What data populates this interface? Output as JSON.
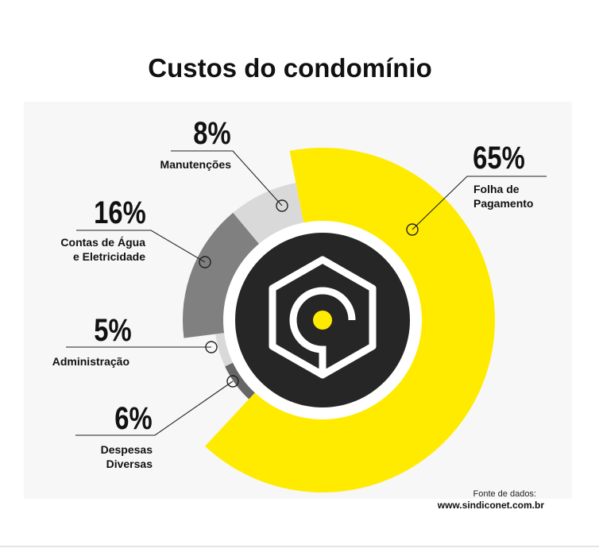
{
  "colors": {
    "accent": "#FFEB00",
    "dark": "#262626",
    "mid_gray": "#808080",
    "light_gray": "#D9D9D9",
    "dark_gray": "#666666",
    "text": "#111111"
  },
  "source": {
    "prefix": "Fonte de dados:",
    "url": "www.sindiconet.com.br"
  },
  "center_icon": "hexagon-logo-icon",
  "chart_data": {
    "type": "pie",
    "title": "Custos do condomínio",
    "unit": "%",
    "slices": [
      {
        "key": "folha",
        "value": 65,
        "display": "65%",
        "label": [
          "Folha de",
          "Pagamento"
        ],
        "color": "#FFEB00"
      },
      {
        "key": "diversas",
        "value": 6,
        "display": "6%",
        "label": [
          "Despesas",
          "Diversas"
        ],
        "color": "#666666"
      },
      {
        "key": "admin",
        "value": 5,
        "display": "5%",
        "label": [
          "Administração"
        ],
        "color": "#D9D9D9"
      },
      {
        "key": "contas",
        "value": 16,
        "display": "16%",
        "label": [
          "Contas de Água",
          "e Eletricidade"
        ],
        "color": "#808080"
      },
      {
        "key": "manut",
        "value": 8,
        "display": "8%",
        "label": [
          "Manutenções"
        ],
        "color": "#D9D9D9"
      }
    ]
  }
}
